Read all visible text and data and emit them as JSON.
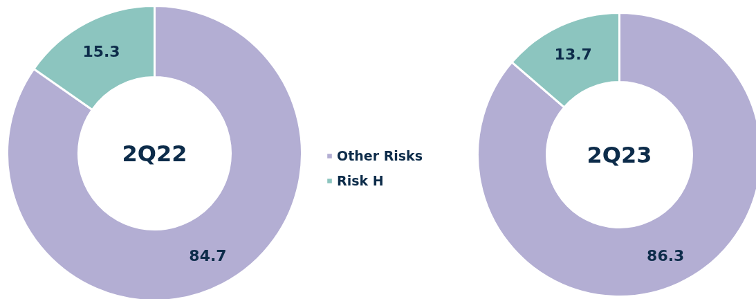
{
  "chart_data": [
    {
      "type": "donut",
      "title": "2Q22",
      "categories": [
        "Other Risks",
        "Risk H"
      ],
      "values": [
        84.7,
        15.3
      ],
      "colors": [
        "#b3aed3",
        "#8cc5bf"
      ],
      "data_labels": true,
      "legend": "right"
    },
    {
      "type": "donut",
      "title": "2Q23",
      "values": [
        86.3,
        13.7
      ],
      "colors": [
        "#b3aed3",
        "#8cc5bf"
      ],
      "data_labels": true
    }
  ]
}
